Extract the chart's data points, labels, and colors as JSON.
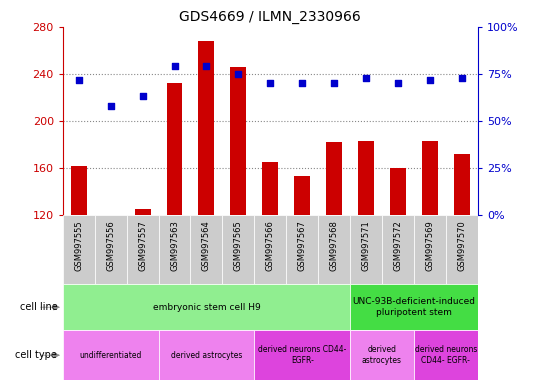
{
  "title": "GDS4669 / ILMN_2330966",
  "samples": [
    "GSM997555",
    "GSM997556",
    "GSM997557",
    "GSM997563",
    "GSM997564",
    "GSM997565",
    "GSM997566",
    "GSM997567",
    "GSM997568",
    "GSM997571",
    "GSM997572",
    "GSM997569",
    "GSM997570"
  ],
  "counts": [
    162,
    120,
    125,
    232,
    268,
    246,
    165,
    153,
    182,
    183,
    160,
    183,
    172
  ],
  "percentiles": [
    72,
    58,
    63,
    79,
    79,
    75,
    70,
    70,
    70,
    73,
    70,
    72,
    73
  ],
  "ylim_left": [
    120,
    280
  ],
  "ylim_right": [
    0,
    100
  ],
  "yticks_left": [
    120,
    160,
    200,
    240,
    280
  ],
  "yticks_right": [
    0,
    25,
    50,
    75,
    100
  ],
  "bar_color": "#cc0000",
  "dot_color": "#0000cc",
  "cell_line_groups": [
    {
      "label": "embryonic stem cell H9",
      "start": 0,
      "end": 9,
      "color": "#90ee90"
    },
    {
      "label": "UNC-93B-deficient-induced\npluripotent stem",
      "start": 9,
      "end": 13,
      "color": "#44dd44"
    }
  ],
  "cell_type_groups": [
    {
      "label": "undifferentiated",
      "start": 0,
      "end": 3,
      "color": "#ee82ee"
    },
    {
      "label": "derived astrocytes",
      "start": 3,
      "end": 6,
      "color": "#ee82ee"
    },
    {
      "label": "derived neurons CD44-\nEGFR-",
      "start": 6,
      "end": 9,
      "color": "#dd44dd"
    },
    {
      "label": "derived\nastrocytes",
      "start": 9,
      "end": 11,
      "color": "#ee82ee"
    },
    {
      "label": "derived neurons\nCD44- EGFR-",
      "start": 11,
      "end": 13,
      "color": "#dd44dd"
    }
  ],
  "legend_count_color": "#cc0000",
  "legend_percentile_color": "#0000cc",
  "grid_color": "#888888",
  "tick_color_left": "#cc0000",
  "tick_color_right": "#0000cc",
  "bar_bottom": 120,
  "xtick_bg_color": "#cccccc",
  "gridline_values": [
    160,
    200,
    240
  ]
}
